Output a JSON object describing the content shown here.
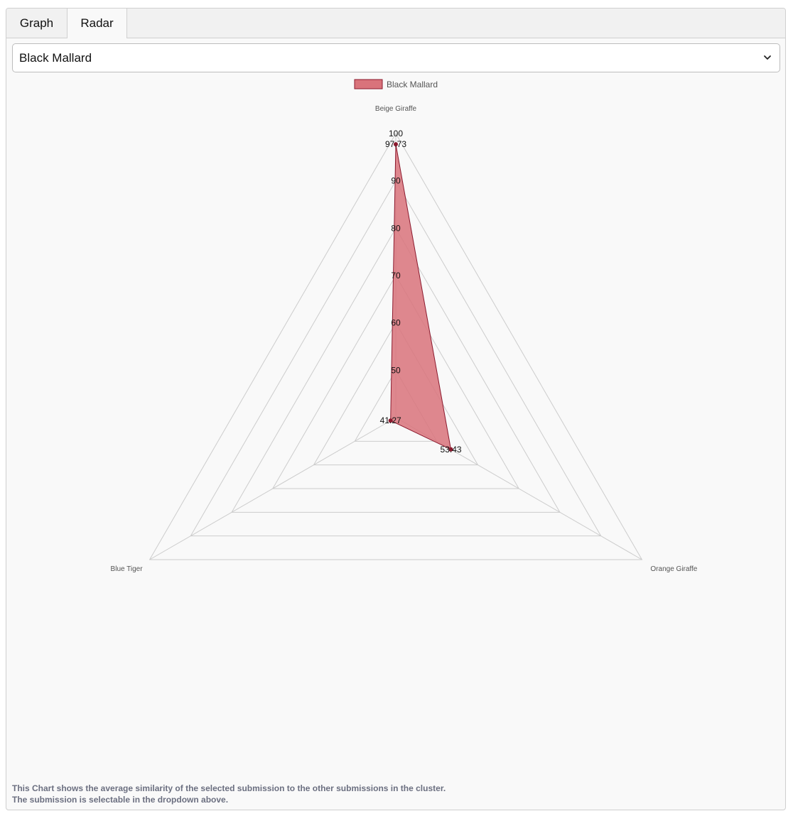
{
  "tabs": [
    {
      "label": "Graph",
      "active": false
    },
    {
      "label": "Radar",
      "active": true
    }
  ],
  "dropdown": {
    "selected": "Black Mallard"
  },
  "chart_data": {
    "type": "radar",
    "categories": [
      "Beige Giraffe",
      "Orange Giraffe",
      "Blue Tiger"
    ],
    "series": [
      {
        "name": "Black Mallard",
        "values": [
          97.73,
          53.43,
          41.27
        ],
        "fill": "#d9737b",
        "stroke": "#8b1a2e"
      }
    ],
    "data_labels": [
      "97.73",
      "53.43",
      "41.27"
    ],
    "r_ticks": [
      50,
      60,
      70,
      80,
      90,
      100
    ],
    "rlim": [
      40,
      100
    ],
    "grid": true,
    "legend_position": "top"
  },
  "footnote": {
    "line1": "This Chart shows the average similarity of the selected submission to the other submissions in the cluster.",
    "line2": "The submission is selectable in the dropdown above."
  },
  "colors": {
    "grid": "#cccccc",
    "fill": "#d9737b",
    "stroke": "#8b1a2e"
  }
}
